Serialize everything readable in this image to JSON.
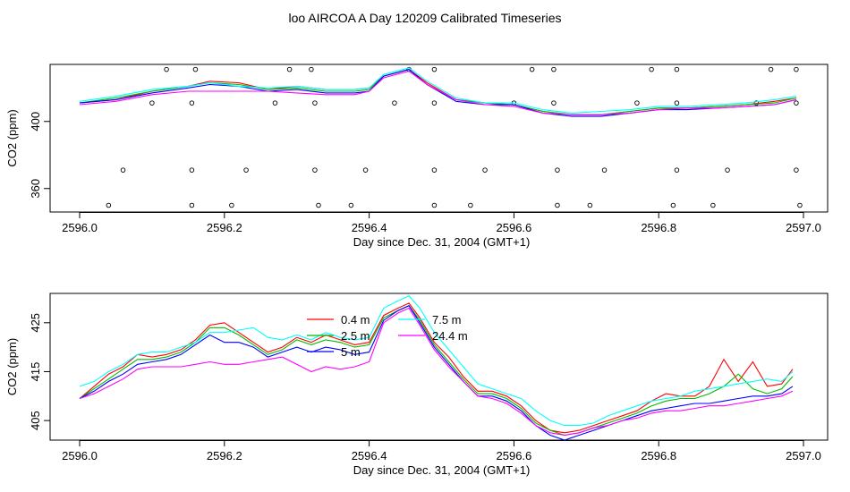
{
  "title": "loo AIRCOA A  Day 120209  Calibrated Timeseries",
  "colors": {
    "0.4 m": "#ff0000",
    "2.5 m": "#00bb00",
    "5 m": "#0000ff",
    "7.5 m": "#00ffff",
    "24.4 m": "#ff00ff"
  },
  "chart_data": [
    {
      "type": "scatter+line",
      "title": "",
      "xlabel": "Day since Dec. 31, 2004 (GMT+1)",
      "ylabel": "CO2 (ppm)",
      "xlim": [
        2596.0,
        2597.0
      ],
      "ylim": [
        346,
        434
      ],
      "xticks": [
        2596.0,
        2596.2,
        2596.4,
        2596.6,
        2596.8,
        2597.0
      ],
      "xtick_labels": [
        "2596.0",
        "2596.2",
        "2596.4",
        "2596.6",
        "2596.8",
        "2597.0"
      ],
      "yticks": [
        360,
        400
      ],
      "ytick_labels": [
        "360",
        "400"
      ],
      "calibration_points": [
        {
          "x": 2596.04,
          "y": 350
        },
        {
          "x": 2596.06,
          "y": 371
        },
        {
          "x": 2596.1,
          "y": 411
        },
        {
          "x": 2596.12,
          "y": 431
        },
        {
          "x": 2596.155,
          "y": 350
        },
        {
          "x": 2596.155,
          "y": 371
        },
        {
          "x": 2596.155,
          "y": 411
        },
        {
          "x": 2596.16,
          "y": 431
        },
        {
          "x": 2596.21,
          "y": 350
        },
        {
          "x": 2596.23,
          "y": 371
        },
        {
          "x": 2596.27,
          "y": 411
        },
        {
          "x": 2596.29,
          "y": 431
        },
        {
          "x": 2596.32,
          "y": 431
        },
        {
          "x": 2596.325,
          "y": 411
        },
        {
          "x": 2596.325,
          "y": 371
        },
        {
          "x": 2596.33,
          "y": 350
        },
        {
          "x": 2596.375,
          "y": 350
        },
        {
          "x": 2596.395,
          "y": 371
        },
        {
          "x": 2596.435,
          "y": 411
        },
        {
          "x": 2596.455,
          "y": 431
        },
        {
          "x": 2596.49,
          "y": 431
        },
        {
          "x": 2596.49,
          "y": 411
        },
        {
          "x": 2596.49,
          "y": 371
        },
        {
          "x": 2596.49,
          "y": 350
        },
        {
          "x": 2596.54,
          "y": 350
        },
        {
          "x": 2596.56,
          "y": 371
        },
        {
          "x": 2596.6,
          "y": 411
        },
        {
          "x": 2596.625,
          "y": 431
        },
        {
          "x": 2596.655,
          "y": 431
        },
        {
          "x": 2596.655,
          "y": 411
        },
        {
          "x": 2596.66,
          "y": 371
        },
        {
          "x": 2596.66,
          "y": 350
        },
        {
          "x": 2596.705,
          "y": 350
        },
        {
          "x": 2596.725,
          "y": 371
        },
        {
          "x": 2596.77,
          "y": 411
        },
        {
          "x": 2596.79,
          "y": 431
        },
        {
          "x": 2596.825,
          "y": 431
        },
        {
          "x": 2596.825,
          "y": 411
        },
        {
          "x": 2596.825,
          "y": 371
        },
        {
          "x": 2596.82,
          "y": 350
        },
        {
          "x": 2596.875,
          "y": 350
        },
        {
          "x": 2596.895,
          "y": 371
        },
        {
          "x": 2596.935,
          "y": 411
        },
        {
          "x": 2596.955,
          "y": 431
        },
        {
          "x": 2596.99,
          "y": 431
        },
        {
          "x": 2596.99,
          "y": 411
        },
        {
          "x": 2596.99,
          "y": 371
        },
        {
          "x": 2596.995,
          "y": 350
        }
      ],
      "x": [
        2596.0,
        2596.05,
        2596.1,
        2596.15,
        2596.18,
        2596.22,
        2596.26,
        2596.3,
        2596.34,
        2596.38,
        2596.4,
        2596.42,
        2596.455,
        2596.48,
        2596.52,
        2596.56,
        2596.6,
        2596.64,
        2596.68,
        2596.72,
        2596.76,
        2596.8,
        2596.84,
        2596.88,
        2596.92,
        2596.96,
        2596.99
      ],
      "series": [
        {
          "name": "0.4 m",
          "values": [
            411,
            413,
            418,
            421,
            424,
            423,
            419,
            421,
            419,
            419,
            420,
            427,
            431,
            423,
            413,
            411,
            410,
            406,
            404,
            404,
            406,
            408,
            408,
            409,
            410,
            412,
            414
          ]
        },
        {
          "name": "2.5 m",
          "values": [
            411,
            414,
            418,
            421,
            423,
            422,
            419,
            420,
            418,
            418,
            419,
            427,
            431,
            422,
            413,
            411,
            410,
            406,
            404,
            404,
            406,
            408,
            408,
            409,
            410,
            411,
            414
          ]
        },
        {
          "name": "5 m",
          "values": [
            411,
            413,
            417,
            420,
            422,
            421,
            418,
            419,
            417,
            417,
            418,
            427,
            431,
            422,
            412,
            410,
            410,
            405,
            403,
            403,
            405,
            407,
            407,
            408,
            409,
            410,
            413
          ]
        },
        {
          "name": "7.5 m",
          "values": [
            412,
            415,
            419,
            421,
            423,
            421,
            420,
            421,
            419,
            419,
            420,
            428,
            432,
            424,
            414,
            411,
            411,
            407,
            405,
            406,
            407,
            409,
            409,
            410,
            411,
            413,
            415
          ]
        },
        {
          "name": "24.4 m",
          "values": [
            410,
            412,
            416,
            418,
            418,
            418,
            418,
            417,
            416,
            416,
            418,
            426,
            430,
            422,
            413,
            410,
            409,
            405,
            404,
            404,
            405,
            407,
            408,
            408,
            409,
            410,
            413
          ]
        }
      ]
    },
    {
      "type": "line",
      "title": "",
      "xlabel": "Day since Dec. 31, 2004 (GMT+1)",
      "ylabel": "CO2 (ppm)",
      "xlim": [
        2596.0,
        2597.0
      ],
      "ylim": [
        401,
        431
      ],
      "xticks": [
        2596.0,
        2596.2,
        2596.4,
        2596.6,
        2596.8,
        2597.0
      ],
      "xtick_labels": [
        "2596.0",
        "2596.2",
        "2596.4",
        "2596.6",
        "2596.8",
        "2597.0"
      ],
      "yticks": [
        405,
        415,
        425
      ],
      "ytick_labels": [
        "405",
        "415",
        "425"
      ],
      "legend": {
        "placement": "top-center",
        "columns": 2
      },
      "x": [
        2596.0,
        2596.02,
        2596.04,
        2596.06,
        2596.08,
        2596.1,
        2596.12,
        2596.14,
        2596.16,
        2596.18,
        2596.2,
        2596.22,
        2596.24,
        2596.26,
        2596.28,
        2596.3,
        2596.32,
        2596.34,
        2596.36,
        2596.38,
        2596.4,
        2596.42,
        2596.44,
        2596.455,
        2596.47,
        2596.49,
        2596.51,
        2596.53,
        2596.55,
        2596.57,
        2596.59,
        2596.61,
        2596.63,
        2596.65,
        2596.67,
        2596.69,
        2596.71,
        2596.73,
        2596.75,
        2596.77,
        2596.79,
        2596.81,
        2596.83,
        2596.85,
        2596.87,
        2596.89,
        2596.91,
        2596.93,
        2596.95,
        2596.97,
        2596.985
      ],
      "series": [
        {
          "name": "0.4 m",
          "values": [
            409.5,
            412,
            414.5,
            416,
            418.5,
            418,
            418.5,
            419.5,
            421.5,
            424.5,
            425,
            423,
            421,
            419,
            420,
            422,
            421,
            422.5,
            421.5,
            420.5,
            421,
            426.5,
            428,
            429,
            426,
            421,
            418,
            414,
            411,
            411,
            410,
            408,
            405,
            403,
            402.5,
            403,
            404,
            405,
            406,
            407,
            409,
            410.5,
            410,
            410,
            412,
            417.5,
            413,
            417,
            412,
            412.5,
            415.5
          ]
        },
        {
          "name": "2.5 m",
          "values": [
            409.5,
            411.5,
            413.5,
            415.5,
            417.5,
            417.5,
            418,
            419,
            421,
            424,
            424,
            422.5,
            420.5,
            418.5,
            419.5,
            421.5,
            420.5,
            421.5,
            421,
            420,
            420.5,
            426,
            427.5,
            428.5,
            425.5,
            420.5,
            417,
            413.5,
            410.5,
            410.5,
            409.5,
            407.5,
            404.5,
            403,
            402,
            402.5,
            403.5,
            404.5,
            405.5,
            406.5,
            408,
            409,
            409.5,
            409.5,
            410.5,
            412,
            414.5,
            411.5,
            410.5,
            411.5,
            414
          ]
        },
        {
          "name": "5 m",
          "values": [
            409.5,
            411,
            413,
            414.5,
            416.5,
            417,
            417.5,
            418.5,
            420.5,
            422.5,
            421,
            421,
            420,
            418,
            419,
            420,
            419,
            420,
            419.5,
            418.5,
            419,
            425.5,
            427.5,
            428.5,
            425,
            420,
            416.5,
            413,
            410,
            410,
            409,
            407,
            404,
            402,
            401,
            402,
            403,
            404,
            405,
            406,
            407,
            407.5,
            408,
            408.5,
            408.5,
            409,
            409.5,
            410,
            410,
            410.5,
            412
          ]
        },
        {
          "name": "7.5 m",
          "values": [
            412,
            413,
            415,
            416.5,
            418.5,
            419,
            419,
            420,
            421,
            423,
            423,
            423.5,
            424,
            422,
            421.5,
            422.5,
            421.5,
            423,
            422,
            421.5,
            422,
            428,
            429.5,
            430.5,
            428,
            423,
            419.5,
            416,
            412.5,
            411.5,
            410.5,
            409.5,
            407,
            405,
            404,
            404,
            404.5,
            406,
            407,
            408,
            409,
            409.5,
            410,
            411,
            411.5,
            412,
            412.5,
            413,
            413.5,
            413,
            415
          ]
        },
        {
          "name": "24.4 m",
          "values": [
            409.5,
            410.5,
            412,
            413.5,
            415.5,
            416,
            416,
            416,
            416.5,
            417,
            416.5,
            416.5,
            417,
            417.5,
            418,
            416.5,
            415,
            416,
            415.5,
            416,
            417,
            425,
            427,
            428,
            424.5,
            419.5,
            416,
            413,
            410,
            409.5,
            408.5,
            406.5,
            404,
            402.5,
            402,
            402.5,
            403.5,
            404,
            405,
            405.5,
            406.5,
            407,
            407,
            407.5,
            408,
            408,
            408.5,
            409,
            409.5,
            410,
            411
          ]
        }
      ]
    }
  ]
}
